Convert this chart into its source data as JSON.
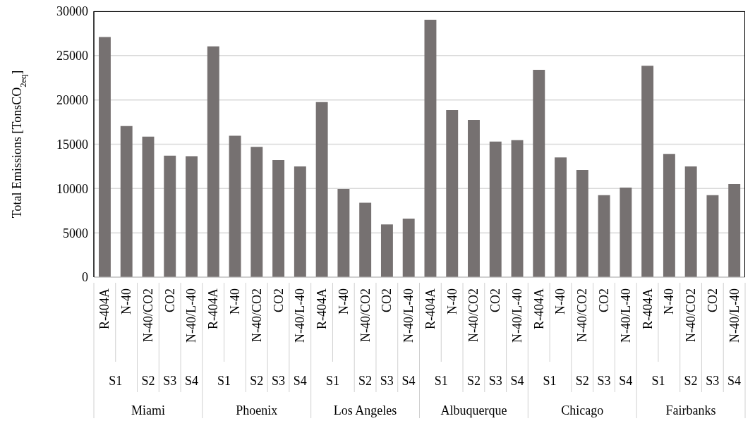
{
  "chart_data": {
    "type": "bar",
    "ylabel": "Total Emissions [TonsCO$_{2eq}$]",
    "categories": [
      "R-404A",
      "N-40",
      "N-40/CO2",
      "CO2",
      "N-40/L-40",
      "R-404A",
      "N-40",
      "N-40/CO2",
      "CO2",
      "N-40/L-40",
      "R-404A",
      "N-40",
      "N-40/CO2",
      "CO2",
      "N-40/L-40",
      "R-404A",
      "N-40",
      "N-40/CO2",
      "CO2",
      "N-40/L-40",
      "R-404A",
      "N-40",
      "N-40/CO2",
      "CO2",
      "N-40/L-40",
      "R-404A",
      "N-40",
      "N-40/CO2",
      "CO2",
      "N-40/L-40"
    ],
    "values": [
      27100,
      17050,
      15850,
      13700,
      13650,
      26050,
      15950,
      14700,
      13200,
      12500,
      19750,
      9950,
      8400,
      5950,
      6600,
      29050,
      18850,
      17750,
      15300,
      15450,
      23400,
      13500,
      12100,
      9250,
      10100,
      23850,
      13900,
      12500,
      9250,
      10500
    ],
    "color": "#767171",
    "ylim": [
      0,
      30000
    ],
    "yticks": [
      0,
      5000,
      10000,
      15000,
      20000,
      25000,
      30000
    ],
    "grid": "y",
    "annotations": [
      "S1",
      "S2",
      "S3",
      "S4",
      "S1",
      "S2",
      "S3",
      "S4",
      "S1",
      "S2",
      "S3",
      "S4",
      "S1",
      "S2",
      "S3",
      "S4",
      "S1",
      "S2",
      "S3",
      "S4",
      "S1",
      "S2",
      "S3",
      "S4",
      "Miami",
      "Phoenix",
      "Los Angeles",
      "Albuquerque",
      "Chicago",
      "Fairbanks"
    ]
  }
}
